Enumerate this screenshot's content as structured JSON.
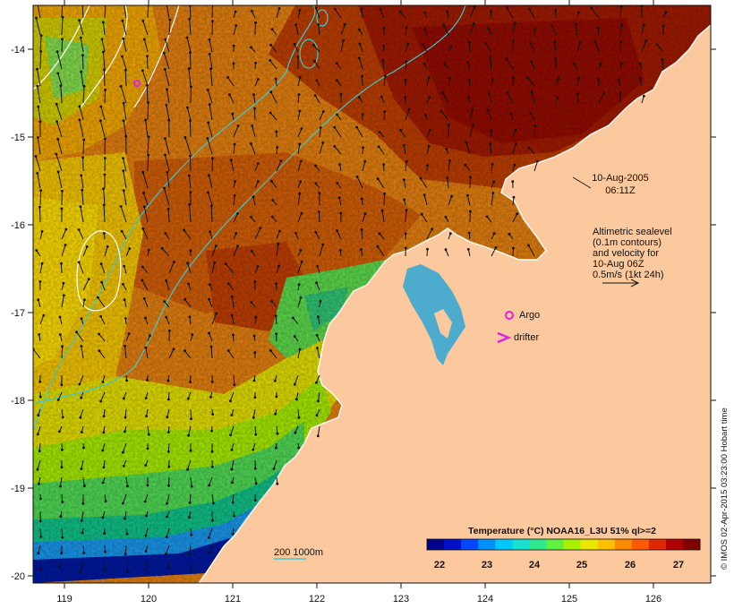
{
  "map": {
    "x_ticks": [
      "119",
      "120",
      "121",
      "122",
      "123",
      "124",
      "125",
      "126"
    ],
    "y_ticks": [
      "-14",
      "-15",
      "-16",
      "-17",
      "-18",
      "-19",
      "-20"
    ],
    "land_color": "#fbc99d",
    "sst_colors": [
      "#8b0000",
      "#b42e00",
      "#d45a00",
      "#e88c00",
      "#f4b400",
      "#e2d200",
      "#b4e000",
      "#5ad34a",
      "#00b36f",
      "#00a7c6",
      "#2c6cf0",
      "#00159a"
    ]
  },
  "annotations": {
    "date": "10-Aug-2005",
    "time": "06:11Z",
    "altimetry_lines": [
      "Altimetric sealevel",
      "(0.1m contours)",
      "and velocity for",
      "10-Aug 06Z",
      "0.5m/s (1kt 24h)"
    ],
    "argo_label": "Argo",
    "drifter_label": "drifter",
    "isobath_label": "200  1000m"
  },
  "colorbar": {
    "title": "Temperature (°C) NOAA16_L3U 51% ql>=2",
    "ticks": [
      "22",
      "23",
      "24",
      "25",
      "26",
      "27"
    ],
    "colors": [
      "#00008f",
      "#0010c8",
      "#0048ff",
      "#0090ff",
      "#00c8ff",
      "#18e0d0",
      "#30e890",
      "#60f040",
      "#a8f000",
      "#e8e800",
      "#ffc000",
      "#ff8c00",
      "#ff5a00",
      "#e02800",
      "#b00000",
      "#800000"
    ]
  },
  "credit": "© IMOS 02-Apr-2015 03:23:00 Hobart time"
}
